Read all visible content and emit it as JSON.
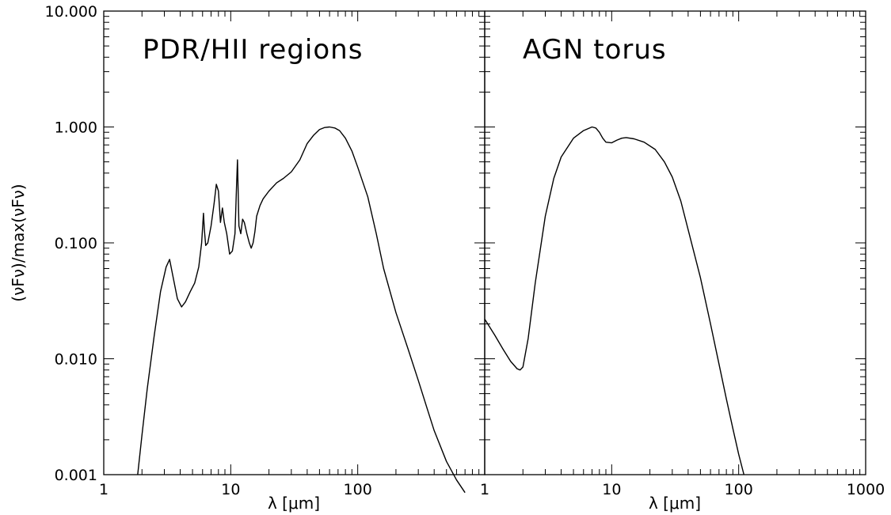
{
  "chart_data": [
    {
      "type": "line",
      "title": "PDR/HII regions",
      "xlabel": "λ [μm]",
      "ylabel": "(νFν)/max(νFν)",
      "xscale": "log",
      "yscale": "log",
      "xlim": [
        1,
        1000
      ],
      "ylim": [
        0.001,
        10
      ],
      "x_ticks": [
        "1",
        "10",
        "100"
      ],
      "y_ticks": [
        "0.001",
        "0.010",
        "0.100",
        "1.000",
        "10.000"
      ],
      "series": [
        {
          "x": [
            1.85,
            2.0,
            2.2,
            2.5,
            2.8,
            3.1,
            3.3,
            3.5,
            3.8,
            4.1,
            4.4,
            4.8,
            5.2,
            5.6,
            5.9,
            6.1,
            6.2,
            6.35,
            6.6,
            7.0,
            7.4,
            7.7,
            8.0,
            8.3,
            8.6,
            8.9,
            9.3,
            9.8,
            10.3,
            10.8,
            11.1,
            11.3,
            11.6,
            12.0,
            12.4,
            12.8,
            13.4,
            14.0,
            14.5,
            15.0,
            15.5,
            16.0,
            17.0,
            18.0,
            20.0,
            23.0,
            26.0,
            30.0,
            35.0,
            40.0,
            45.0,
            50.0,
            55.0,
            60.0,
            66.0,
            72.0,
            80.0,
            90.0,
            100.0,
            120.0,
            140.0,
            160.0,
            200.0,
            250.0,
            300.0,
            350.0,
            400.0,
            500.0,
            600.0,
            700.0
          ],
          "y": [
            0.001,
            0.0022,
            0.0055,
            0.016,
            0.038,
            0.062,
            0.072,
            0.052,
            0.033,
            0.028,
            0.031,
            0.038,
            0.045,
            0.062,
            0.1,
            0.18,
            0.13,
            0.095,
            0.1,
            0.14,
            0.22,
            0.32,
            0.28,
            0.15,
            0.2,
            0.15,
            0.12,
            0.08,
            0.085,
            0.12,
            0.3,
            0.52,
            0.14,
            0.12,
            0.16,
            0.15,
            0.12,
            0.1,
            0.09,
            0.1,
            0.125,
            0.17,
            0.21,
            0.24,
            0.28,
            0.33,
            0.36,
            0.41,
            0.52,
            0.72,
            0.85,
            0.95,
            0.99,
            1.0,
            0.98,
            0.93,
            0.8,
            0.62,
            0.45,
            0.25,
            0.12,
            0.06,
            0.025,
            0.012,
            0.0065,
            0.0038,
            0.0024,
            0.0013,
            0.0009,
            0.0007
          ]
        }
      ]
    },
    {
      "type": "line",
      "title": "AGN torus",
      "xlabel": "λ [μm]",
      "ylabel": "",
      "xscale": "log",
      "yscale": "log",
      "xlim": [
        1,
        1000
      ],
      "ylim": [
        0.001,
        10
      ],
      "x_ticks": [
        "1",
        "10",
        "100",
        "1000"
      ],
      "series": [
        {
          "x": [
            1.0,
            1.2,
            1.4,
            1.6,
            1.8,
            1.9,
            2.0,
            2.2,
            2.5,
            3.0,
            3.5,
            4.0,
            5.0,
            6.0,
            7.0,
            7.5,
            8.0,
            8.5,
            9.0,
            10.0,
            11.0,
            12.0,
            13.0,
            15.0,
            18.0,
            22.0,
            26.0,
            30.0,
            35.0,
            40.0,
            50.0,
            60.0,
            70.0,
            80.0,
            90.0,
            100.0,
            110.0
          ],
          "y": [
            0.022,
            0.016,
            0.012,
            0.0095,
            0.0082,
            0.008,
            0.0085,
            0.015,
            0.045,
            0.17,
            0.36,
            0.55,
            0.8,
            0.93,
            1.0,
            0.98,
            0.9,
            0.8,
            0.74,
            0.73,
            0.77,
            0.8,
            0.81,
            0.79,
            0.74,
            0.64,
            0.5,
            0.37,
            0.23,
            0.13,
            0.05,
            0.02,
            0.009,
            0.0045,
            0.0025,
            0.0015,
            0.001
          ]
        }
      ]
    }
  ]
}
